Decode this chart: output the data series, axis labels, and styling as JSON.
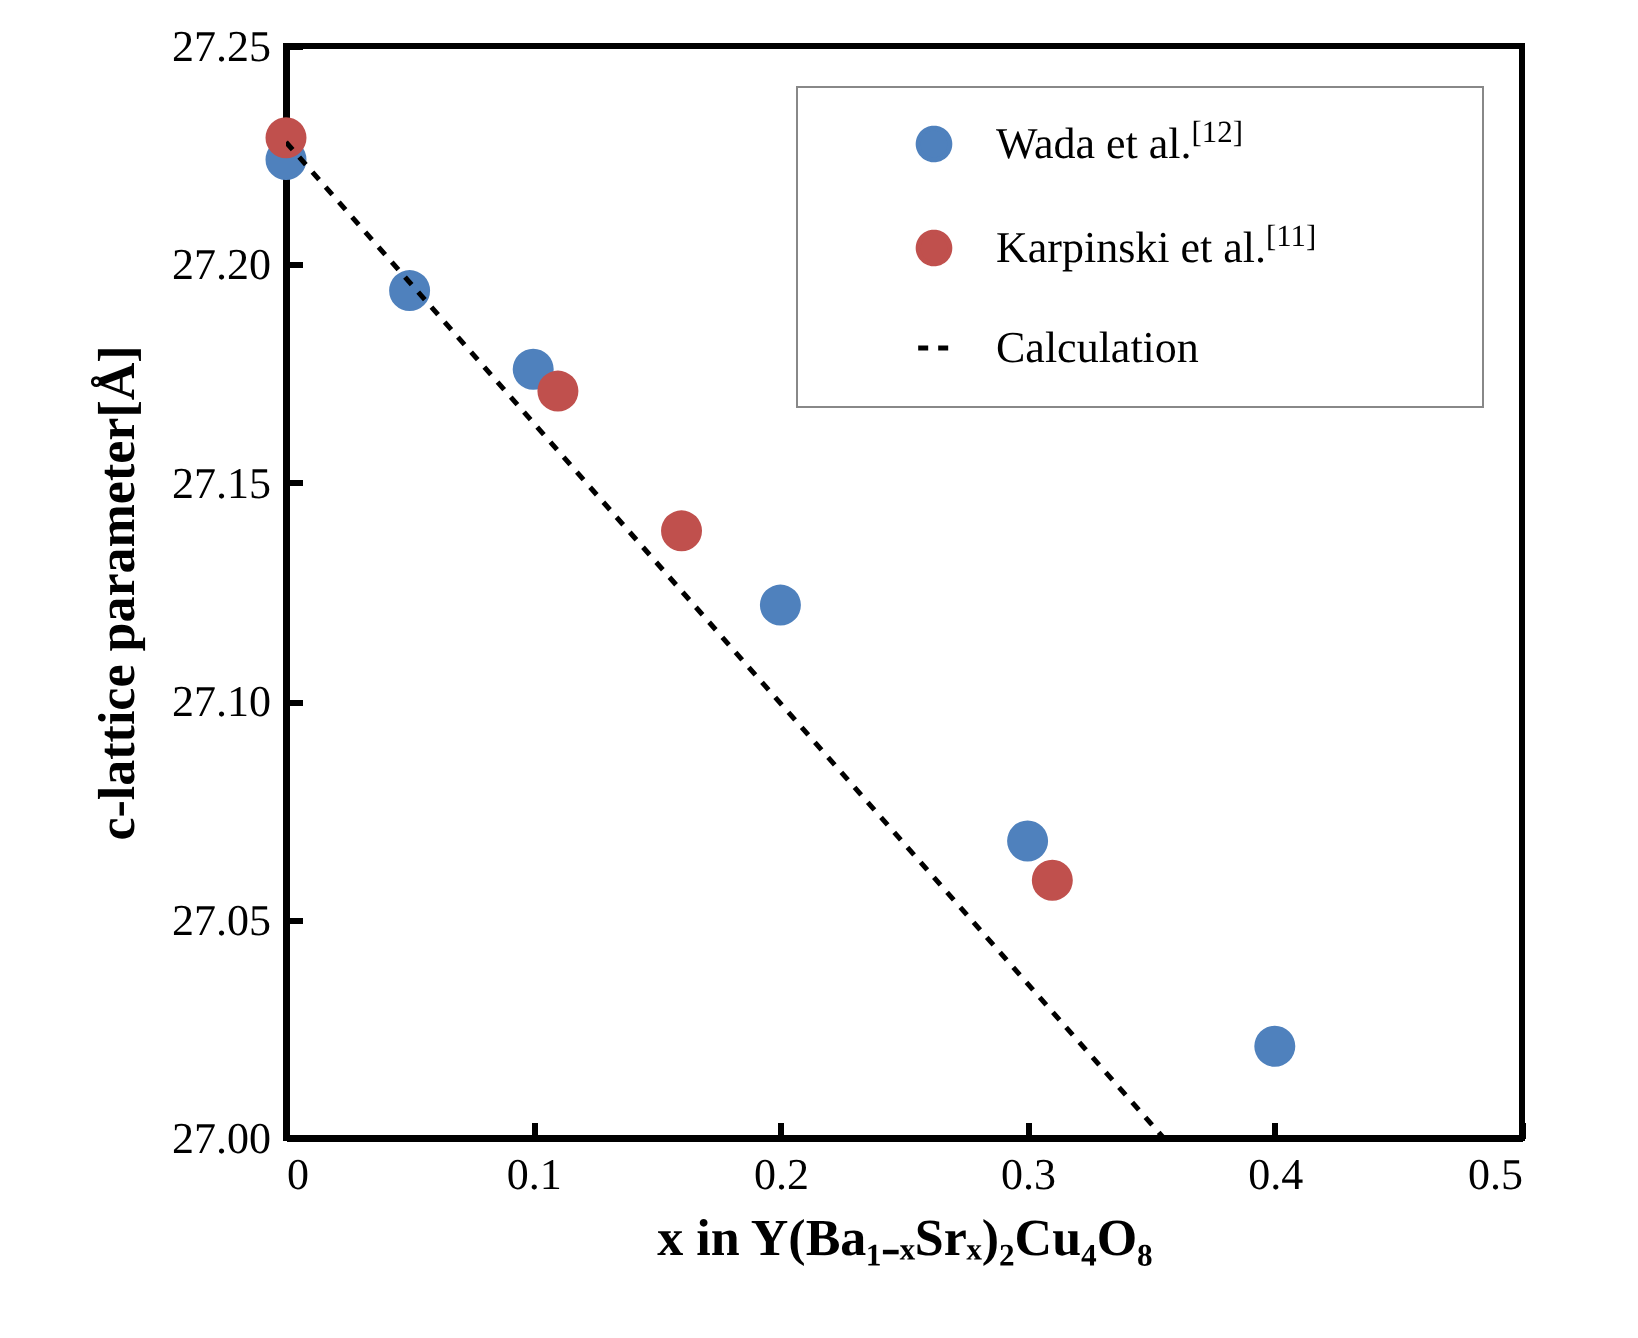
{
  "chart_data": {
    "type": "scatter",
    "xlabel": "x in Y(Ba₁₋ₓSrₓ)₂Cu₄O₈",
    "ylabel": "c-lattice parameter[Å]",
    "xlim": [
      0,
      0.5
    ],
    "xticks": [
      {
        "value": 0,
        "label": "0"
      },
      0.1,
      0.2,
      0.3,
      0.4,
      0.5
    ],
    "ylim": [
      27.0,
      27.25
    ],
    "yticks": [
      {
        "value": 27.0,
        "label": "27.00"
      },
      {
        "value": 27.05,
        "label": "27.05"
      },
      {
        "value": 27.1,
        "label": "27.10"
      },
      {
        "value": 27.15,
        "label": "27.15"
      },
      {
        "value": 27.2,
        "label": "27.20"
      },
      {
        "value": 27.25,
        "label": "27.25"
      }
    ],
    "grid": false,
    "legend": "top right",
    "series": [
      {
        "name": "Wada et al.$^{[12]}$",
        "marker": "circle",
        "color": "#4f81bd",
        "x": [
          0,
          0.05,
          0.1,
          0.2,
          0.3,
          0.4
        ],
        "values": [
          27.224,
          27.194,
          27.176,
          27.122,
          27.068,
          27.021
        ]
      },
      {
        "name": "Karpinski et al.$^{[11]}$",
        "marker": "circle",
        "color": "#c0504d",
        "x": [
          0,
          0.11,
          0.16,
          0.31
        ],
        "values": [
          27.229,
          27.171,
          27.139,
          27.059
        ]
      },
      {
        "name": "Calculation",
        "type": "line",
        "line_style": "dashed",
        "color": "#000000",
        "x": [
          0,
          0.355
        ],
        "values": [
          27.228,
          27.0
        ]
      }
    ]
  }
}
